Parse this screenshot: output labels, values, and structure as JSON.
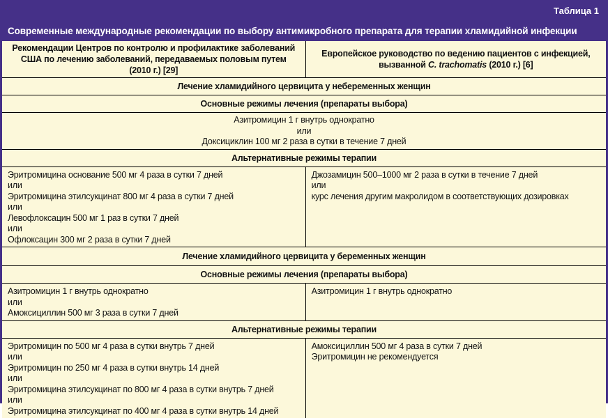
{
  "banner": {
    "table_label": "Таблица 1",
    "title": "Современные международные рекомендации по выбору антимикробного препарата для терапии хламидийной инфекции"
  },
  "colors": {
    "banner_bg": "#453088",
    "cell_bg": "#fcf8da",
    "grid_line": "#000000",
    "banner_text": "#ffffff",
    "body_text": "#121212"
  },
  "columns": {
    "left_header": "Рекомендации Центров по контролю и профилактике заболеваний США по лечению заболеваний, передаваемых половым путем (2010 г.) [29]",
    "right_header_part1": "Европейское руководство по ведению пациентов с инфекцией, вызванной ",
    "right_header_italic": "C. trachomatis",
    "right_header_part2": " (2010 г.) [6]"
  },
  "sections": {
    "nonpregnant": {
      "heading": "Лечение хламидийного цервицита у небеременных женщин",
      "primary_label": "Основные режимы лечения (препараты выбора)",
      "primary_span_lines": [
        "Азитромицин 1 г внутрь однократно",
        "или",
        "Доксициклин 100 мг 2 раза в сутки в течение 7 дней"
      ],
      "alternative_label": "Альтернативные режимы терапии",
      "alternative_left_lines": [
        "Эритромицина основание 500 мг 4 раза в сутки 7 дней",
        "или",
        "Эритромицина этилсукцинат 800 мг 4 раза в сутки 7 дней",
        "или",
        "Левофлоксацин 500 мг 1 раз в сутки 7 дней",
        "или",
        "Офлоксацин 300 мг 2 раза в сутки 7 дней"
      ],
      "alternative_right_lines": [
        "Джозамицин 500–1000 мг 2 раза в сутки в течение 7 дней",
        "или",
        "курс лечения другим макролидом в соответствующих дозировках"
      ]
    },
    "pregnant": {
      "heading": "Лечение хламидийного цервицита у беременных женщин",
      "primary_label": "Основные режимы лечения (препараты выбора)",
      "primary_left_lines": [
        "Азитромицин 1 г внутрь однократно",
        "или",
        "Амоксициллин 500 мг 3 раза в сутки 7 дней"
      ],
      "primary_right_lines": [
        "Азитромицин 1 г внутрь однократно"
      ],
      "alternative_label": "Альтернативные режимы терапии",
      "alternative_left_lines": [
        "Эритромицин по 500 мг 4 раза в сутки внутрь 7 дней",
        "или",
        "Эритромицин по 250 мг 4 раза в сутки внутрь 14 дней",
        "или",
        "Эритромицина этилсукцинат по 800 мг 4 раза в сутки внутрь 7 дней",
        "или",
        "Эритромицина этилсукцинат по 400 мг 4 раза в сутки внутрь 14 дней"
      ],
      "alternative_right_lines": [
        "Амоксициллин 500 мг 4 раза в сутки 7 дней",
        "Эритромицин не рекомендуется"
      ]
    }
  }
}
